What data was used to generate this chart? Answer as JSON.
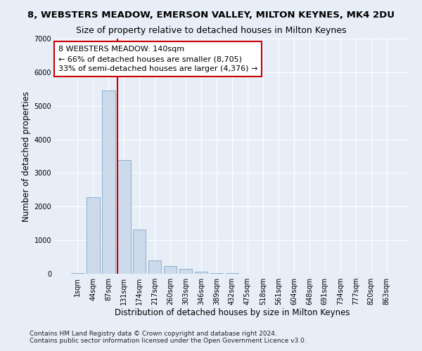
{
  "title": "8, WEBSTERS MEADOW, EMERSON VALLEY, MILTON KEYNES, MK4 2DU",
  "subtitle": "Size of property relative to detached houses in Milton Keynes",
  "xlabel": "Distribution of detached houses by size in Milton Keynes",
  "ylabel": "Number of detached properties",
  "footnote1": "Contains HM Land Registry data © Crown copyright and database right 2024.",
  "footnote2": "Contains public sector information licensed under the Open Government Licence v3.0.",
  "bar_labels": [
    "1sqm",
    "44sqm",
    "87sqm",
    "131sqm",
    "174sqm",
    "217sqm",
    "260sqm",
    "303sqm",
    "346sqm",
    "389sqm",
    "432sqm",
    "475sqm",
    "518sqm",
    "561sqm",
    "604sqm",
    "648sqm",
    "691sqm",
    "734sqm",
    "777sqm",
    "820sqm",
    "863sqm"
  ],
  "bar_values": [
    30,
    2270,
    5450,
    3380,
    1320,
    390,
    240,
    140,
    70,
    30,
    20,
    0,
    0,
    0,
    0,
    0,
    0,
    0,
    0,
    0,
    0
  ],
  "bar_color": "#cddaec",
  "bar_edge_color": "#7fa8c9",
  "annotation_line1": "8 WEBSTERS MEADOW: 140sqm",
  "annotation_line2": "← 66% of detached houses are smaller (8,705)",
  "annotation_line3": "33% of semi-detached houses are larger (4,376) →",
  "annotation_box_color": "#ffffff",
  "annotation_box_edge_color": "#cc0000",
  "vline_color": "#cc0000",
  "vline_x_index": 3,
  "ylim": [
    0,
    7000
  ],
  "yticks": [
    0,
    1000,
    2000,
    3000,
    4000,
    5000,
    6000,
    7000
  ],
  "background_color": "#e8eef8",
  "grid_color": "#ffffff",
  "title_fontsize": 9.5,
  "subtitle_fontsize": 9,
  "axis_label_fontsize": 8.5,
  "tick_fontsize": 7,
  "annotation_fontsize": 8,
  "footnote_fontsize": 6.5
}
